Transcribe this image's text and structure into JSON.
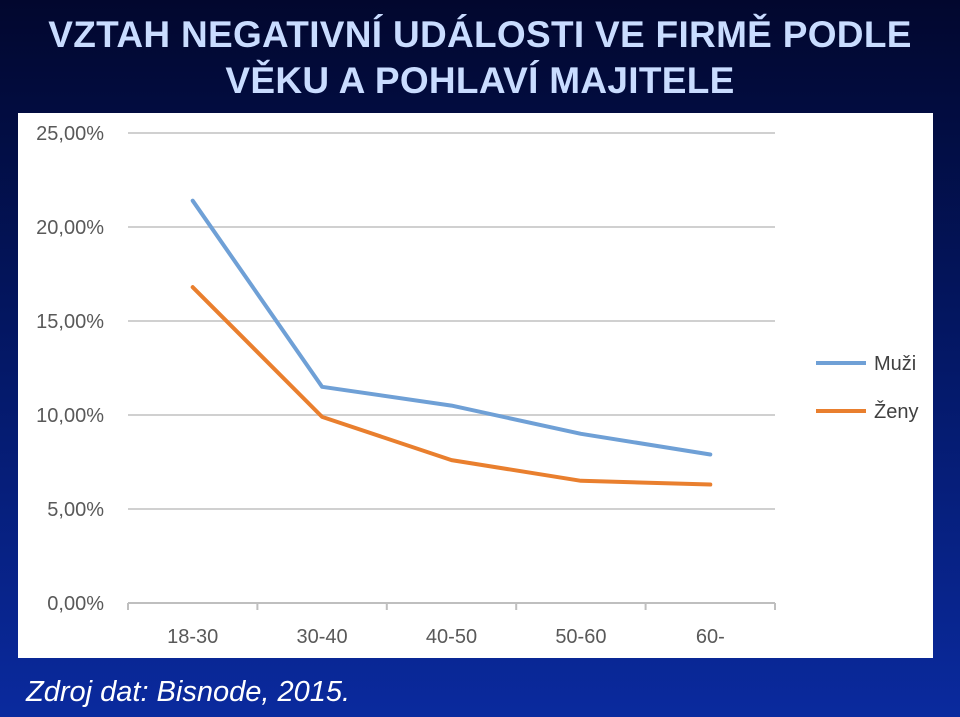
{
  "slide": {
    "title_line1": "VZTAH NEGATIVNÍ UDÁLOSTI VE FIRMĚ PODLE",
    "title_line2": "VĚKU A POHLAVÍ MAJITELE",
    "source": "Zdroj dat: Bisnode, 2015."
  },
  "chart_data": {
    "type": "line",
    "title": "VZTAH NEGATIVNÍ UDÁLOSTI VE FIRMĚ PODLE VĚKU A POHLAVÍ MAJITELE",
    "xlabel": "",
    "ylabel": "",
    "categories": [
      "18-30",
      "30-40",
      "40-50",
      "50-60",
      "60-"
    ],
    "y_ticks": [
      "0,00%",
      "5,00%",
      "10,00%",
      "15,00%",
      "20,00%",
      "25,00%"
    ],
    "ylim": [
      0,
      25
    ],
    "grid": true,
    "legend_position": "right",
    "series": [
      {
        "name": "Muži",
        "color": "#6fa0d6",
        "values": [
          21.4,
          11.5,
          10.5,
          9.0,
          7.9
        ]
      },
      {
        "name": "Ženy",
        "color": "#e97f2e",
        "values": [
          16.8,
          9.9,
          7.6,
          6.5,
          6.3
        ]
      }
    ]
  }
}
